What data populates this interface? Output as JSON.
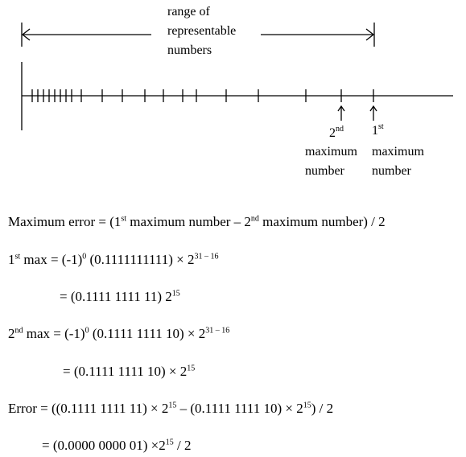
{
  "diagram": {
    "range_label_lines": [
      "range of",
      "representable",
      "numbers"
    ],
    "second_max": {
      "ordinal_num": "2",
      "ordinal_sup": "nd",
      "line2": "maximum",
      "line3": "number"
    },
    "first_max": {
      "ordinal_num": "1",
      "ordinal_sup": "st",
      "line2": "maximum",
      "line3": "number"
    }
  },
  "equations": {
    "error_def": {
      "a": "Maximum error = (1",
      "a_sup": "st",
      "b": " maximum number – 2",
      "b_sup": "nd",
      "c": " maximum number) / 2"
    },
    "first_max": {
      "a": "1",
      "a_sup": "st",
      "b": " max = (-1)",
      "b_sup": "0",
      "c": " (0.1111111111) × 2",
      "c_sup": "31 – 16"
    },
    "first_max_2": {
      "a": "= (0.1111 1111 11) 2",
      "a_sup": "15"
    },
    "second_max": {
      "a": "2",
      "a_sup": "nd",
      "b": " max = (-1)",
      "b_sup": "0",
      "c": " (0.1111 1111 10) × 2",
      "c_sup": "31 – 16"
    },
    "second_max_2": {
      "a": "= (0.1111 1111 10) × 2",
      "a_sup": "15"
    },
    "error_1": {
      "a": "Error = ((0.1111 1111 11) × 2",
      "a_sup": "15",
      "b": " – (0.1111 1111 10) × 2",
      "b_sup": "15",
      "c": ") / 2"
    },
    "error_2": {
      "a": "= (0.0000 0000 01) ×2",
      "a_sup": "15",
      "b": " / 2"
    }
  }
}
